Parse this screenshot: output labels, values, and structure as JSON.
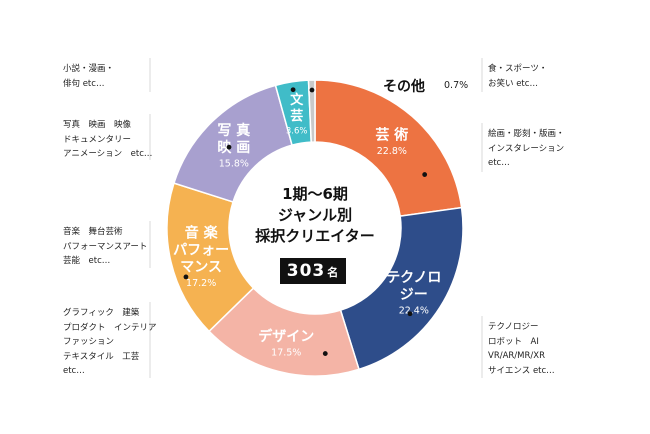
{
  "chart_data": {
    "type": "pie",
    "center_title": [
      "1期〜6期",
      "ジャンル別",
      "採択クリエイター"
    ],
    "total": "303",
    "total_unit": "名",
    "slices": [
      {
        "label": "芸術",
        "value": 22.8,
        "percent": "22.8%",
        "color": "#ED7342",
        "text_color": "#ffffff"
      },
      {
        "label": "テクノロジー",
        "value": 22.4,
        "percent": "22.4%",
        "color": "#2E4D8A",
        "text_color": "#ffffff"
      },
      {
        "label": "デザイン",
        "value": 17.5,
        "percent": "17.5%",
        "color": "#F4B4A6",
        "text_color": "#ffffff"
      },
      {
        "label": "音楽パフォーマンス",
        "value": 17.2,
        "percent": "17.2%",
        "color": "#F5B251",
        "text_color": "#ffffff"
      },
      {
        "label": "写真映画",
        "value": 15.8,
        "percent": "15.8%",
        "color": "#A8A0CF",
        "text_color": "#ffffff"
      },
      {
        "label": "文芸",
        "value": 3.6,
        "percent": "3.6%",
        "color": "#40BCC8",
        "text_color": "#ffffff"
      },
      {
        "label": "その他",
        "value": 0.7,
        "percent": "0.7%",
        "color": "#C9C9C9",
        "text_color": "#111111"
      }
    ],
    "slice_text": {
      "arts": [
        "芸 術"
      ],
      "tech": [
        "テクノロ",
        "ジー"
      ],
      "design": [
        "デザイン"
      ],
      "music": [
        "音 楽",
        "パフォー",
        "マンス"
      ],
      "photo": [
        "写 真",
        "映 画"
      ],
      "lit": [
        "文",
        "芸"
      ]
    }
  },
  "notes": {
    "other": [
      "食・スポーツ・",
      "お笑い etc…"
    ],
    "arts": [
      "絵画・彫刻・版画・",
      "インスタレーション",
      "etc…"
    ],
    "tech": [
      "テクノロジー",
      "ロボット　AI",
      "VR/AR/MR/XR",
      "サイエンス etc…"
    ],
    "design": [
      "グラフィック　建築",
      "プロダクト　インテリア",
      "ファッション",
      "テキスタイル　工芸",
      "etc…"
    ],
    "music": [
      "音楽　舞台芸術",
      "パフォーマンスアート",
      "芸能　etc…"
    ],
    "photo": [
      "写真　映画　映像",
      "ドキュメンタリー",
      "アニメーション　etc…"
    ],
    "lit": [
      "小説・漫画・",
      "俳句 etc…"
    ]
  }
}
